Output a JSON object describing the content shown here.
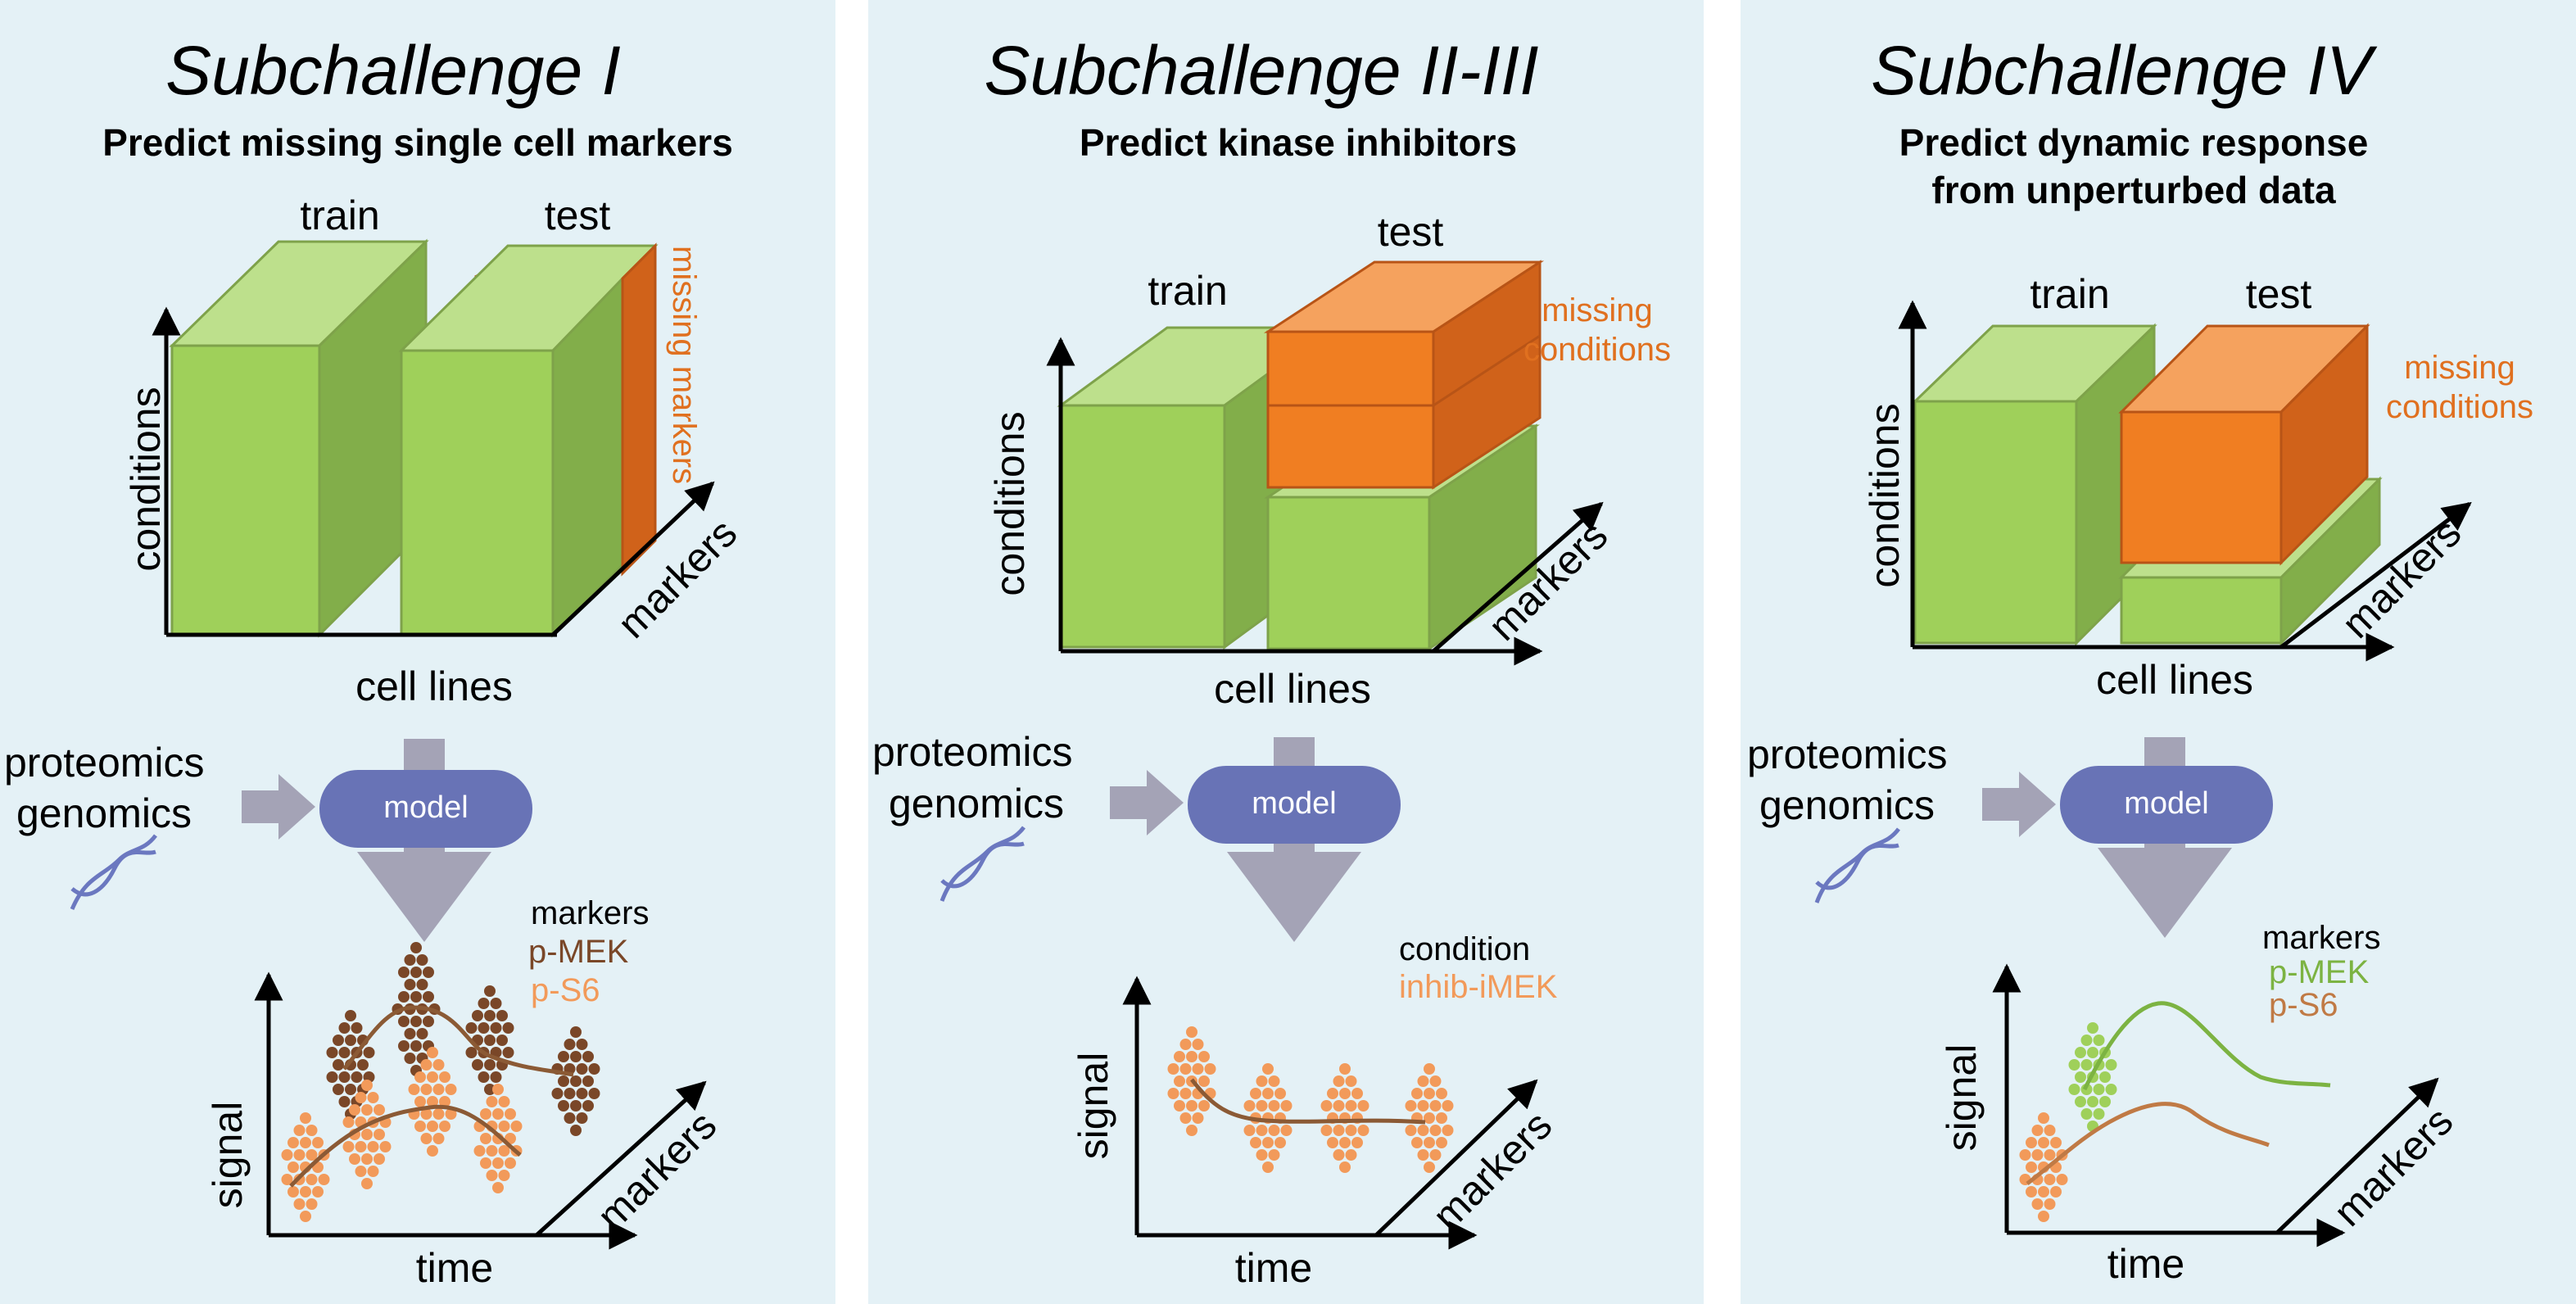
{
  "colors": {
    "panel_bg": "#e4f1f6",
    "green_front": "#9fd05a",
    "green_top": "#bde08c",
    "green_side": "#82ae4a",
    "green_stroke": "#7ea24a",
    "orange_front": "#f07e22",
    "orange_top": "#f5a25e",
    "orange_side": "#d0621a",
    "orange_stroke": "#b85416",
    "orange_text": "#e0701f",
    "model_fill": "#6873b6",
    "gray_arrow": "#a4a3b6",
    "dot_brown": "#7a4728",
    "dot_orange": "#f29a5a",
    "dot_green": "#9fd05a",
    "line_brown": "#8b5a35",
    "line_green": "#7cb342",
    "line_tan": "#c07a45",
    "dna": "#6b78c0"
  },
  "panels": [
    {
      "title": "Subchallenge I",
      "subtitle_lines": [
        "Predict missing single cell markers"
      ],
      "labels": {
        "train": "train",
        "test": "test",
        "side_note": "missing markers",
        "conditions": "conditions",
        "cell_lines": "cell lines",
        "markers_axis": "markers",
        "proteomics": "proteomics",
        "genomics": "genomics",
        "model": "model",
        "legend_title": "markers",
        "legend_items": [
          "p-MEK",
          "p-S6"
        ],
        "signal": "signal",
        "time": "time",
        "markers_bottom": "markers"
      }
    },
    {
      "title": "Subchallenge II-III",
      "subtitle_lines": [
        "Predict kinase inhibitors"
      ],
      "labels": {
        "train": "train",
        "test": "test",
        "side_note_lines": [
          "missing",
          "conditions"
        ],
        "conditions": "conditions",
        "cell_lines": "cell lines",
        "markers_axis": "markers",
        "proteomics": "proteomics",
        "genomics": "genomics",
        "model": "model",
        "legend_title": "condition",
        "legend_items": [
          "inhib-iMEK"
        ],
        "signal": "signal",
        "time": "time",
        "markers_bottom": "markers"
      }
    },
    {
      "title": "Subchallenge IV",
      "subtitle_lines": [
        "Predict dynamic response",
        "from unperturbed data"
      ],
      "labels": {
        "train": "train",
        "test": "test",
        "side_note_lines": [
          "missing",
          "conditions"
        ],
        "conditions": "conditions",
        "cell_lines": "cell lines",
        "markers_axis": "markers",
        "proteomics": "proteomics",
        "genomics": "genomics",
        "model": "model",
        "legend_title": "markers",
        "legend_items": [
          "p-MEK",
          "p-S6"
        ],
        "signal": "signal",
        "time": "time",
        "markers_bottom": "markers"
      }
    }
  ]
}
